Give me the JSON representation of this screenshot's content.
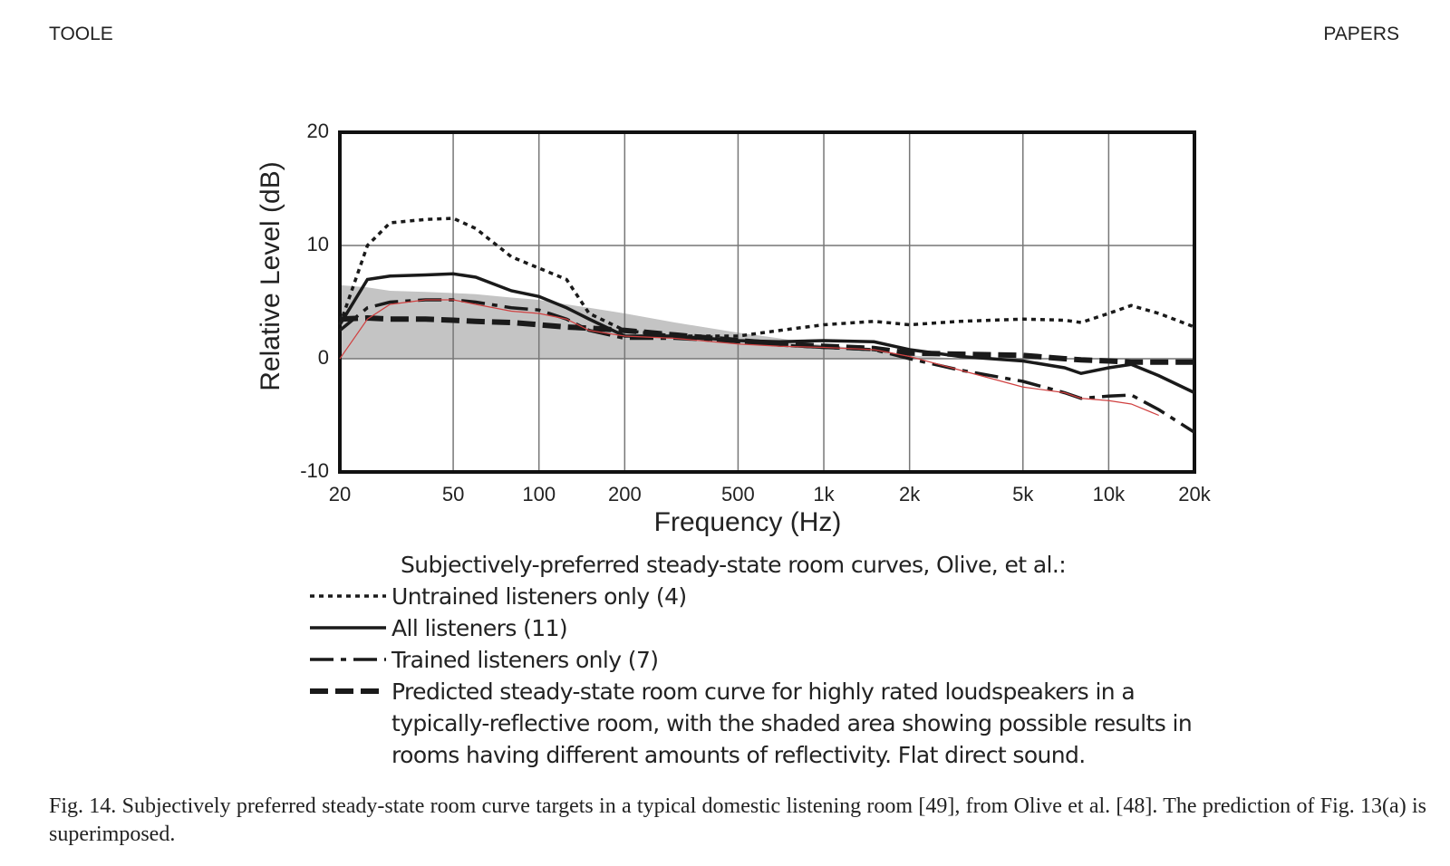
{
  "header": {
    "left": "TOOLE",
    "right": "PAPERS"
  },
  "chart_data": {
    "type": "line",
    "xlabel": "Frequency (Hz)",
    "ylabel": "Relative Level (dB)",
    "log_x": true,
    "grid": true,
    "xlim": [
      20,
      20000
    ],
    "ylim": [
      -10,
      20
    ],
    "xticks": [
      20,
      50,
      100,
      200,
      500,
      {
        "value": 1000,
        "label": "1k"
      },
      {
        "value": 2000,
        "label": "2k"
      },
      {
        "value": 5000,
        "label": "5k"
      },
      {
        "value": 10000,
        "label": "10k"
      },
      {
        "value": 20000,
        "label": "20k"
      }
    ],
    "yticks": [
      -10,
      0,
      10,
      20
    ],
    "x": [
      20,
      25,
      30,
      40,
      50,
      60,
      80,
      100,
      125,
      150,
      200,
      300,
      500,
      700,
      1000,
      1500,
      2000,
      3000,
      5000,
      7000,
      8000,
      10000,
      12000,
      15000,
      20000
    ],
    "legend_title": "Subjectively-preferred steady-state room curves, Olive, et al.:",
    "shade": {
      "color": "#c4c4c4",
      "values": [
        6.5,
        6.3,
        6,
        5.9,
        5.8,
        5.7,
        5.4,
        5.2,
        4.8,
        4.5,
        4,
        3.2,
        2.3,
        1.8,
        1.2,
        0.8,
        0.3,
        0,
        0,
        0,
        0,
        0,
        0,
        0,
        0
      ]
    },
    "series": [
      {
        "name": "Untrained listeners only (4)",
        "color": "#1a1a1a",
        "style": "dotted",
        "values": [
          3,
          10,
          12,
          12.3,
          12.4,
          11.5,
          9,
          8,
          7,
          4,
          2.5,
          2,
          2,
          2.5,
          3,
          3.3,
          3,
          3.3,
          3.5,
          3.4,
          3.2,
          4,
          4.7,
          4,
          2.8
        ]
      },
      {
        "name": "All listeners (11)",
        "color": "#1a1a1a",
        "style": "solid",
        "values": [
          3,
          7,
          7.3,
          7.4,
          7.5,
          7.2,
          6,
          5.5,
          4.5,
          3.5,
          2,
          2,
          1.6,
          1.5,
          1.6,
          1.5,
          0.8,
          0.2,
          -0.2,
          -0.8,
          -1.3,
          -0.8,
          -0.5,
          -1.5,
          -3
        ]
      },
      {
        "name": "Trained listeners only (7)",
        "color": "#1a1a1a",
        "style": "long-dash",
        "values": [
          2.5,
          4.5,
          5,
          5.2,
          5.2,
          5,
          4.5,
          4.3,
          3.5,
          2.5,
          1.8,
          1.8,
          1.5,
          1.2,
          1,
          0.8,
          0,
          -1,
          -2,
          -3,
          -3.5,
          -3.3,
          -3.2,
          -4.5,
          -6.5
        ]
      },
      {
        "name": "Predicted steady-state room curve for highly rated loudspeakers in a typically-reflective room, with the shaded area showing possible results in rooms having different amounts of reflectivity.  Flat direct sound.",
        "color": "#1a1a1a",
        "style": "heavy-dash",
        "values": [
          3.5,
          3.6,
          3.5,
          3.5,
          3.4,
          3.3,
          3.2,
          3,
          2.8,
          2.7,
          2.5,
          2.1,
          1.6,
          1.3,
          1.1,
          0.9,
          0.5,
          0.4,
          0.3,
          0,
          -0.1,
          -0.2,
          -0.3,
          -0.3,
          -0.3
        ]
      },
      {
        "color": "#d04040",
        "style": "thin",
        "values": [
          0,
          3.5,
          4.8,
          5.2,
          5.2,
          4.8,
          4.2,
          4,
          3.5,
          2.5,
          2,
          1.8,
          1.3,
          1.1,
          1,
          0.8,
          0.2,
          -1,
          -2.5,
          -3,
          -3.5,
          -3.7,
          -4,
          -5,
          null
        ]
      }
    ]
  },
  "caption": "Fig. 14.  Subjectively preferred steady-state room curve targets in a typical domestic listening room [49], from Olive et al. [48]. The prediction of Fig. 13(a) is superimposed."
}
